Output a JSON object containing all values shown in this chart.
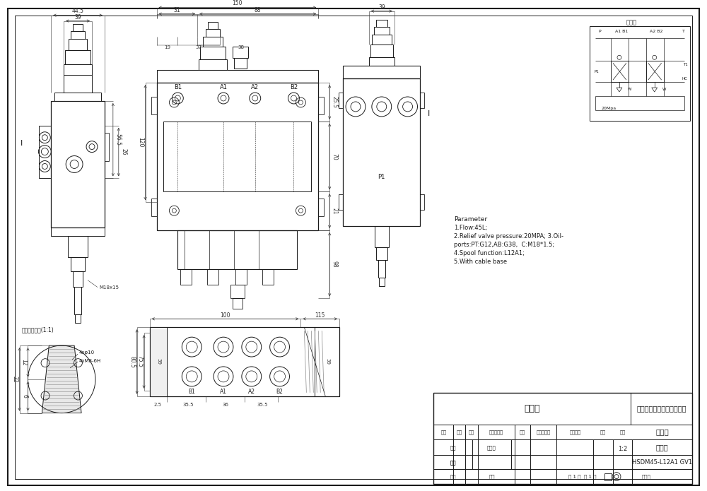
{
  "bg_color": "#ffffff",
  "lc": "#1a1a1a",
  "company": "山东奥救液压科技有限公司",
  "drawing_name": "外形图",
  "part_name": "直装阀",
  "drawing_number": "HSDM45-L12A1 GV1",
  "scale": "1:2",
  "schematic_title": "原理图",
  "detail_title": "局部放大计划(1:1)",
  "detail_label1": "4xφ10",
  "detail_label2": "4xM8-6H",
  "param_title": "Parameter",
  "param_lines": [
    "1.Flow:45L;",
    "2.Relief valve pressure:20MPA; 3.Oil-",
    "ports:PT:G12,AB:G38,  C:M18*1.5;",
    "4.Spool function:L12A1;",
    "5.With cable base"
  ],
  "tbl_mark": "标记",
  "tbl_count": "数量",
  "tbl_zone": "分区",
  "tbl_doc": "更改文件号",
  "tbl_sign": "签名",
  "tbl_date": "年、月、日",
  "tbl_designer": "设计",
  "tbl_std": "标准化",
  "tbl_audit": "核对",
  "tbl_approve": "审批",
  "tbl_stage": "阶段标记",
  "tbl_weight": "重量",
  "tbl_ratio": "比例",
  "tbl_process": "工艺",
  "tbl_approve2": "批准",
  "tbl_pages": "共 1 页  第 1 页",
  "tbl_version": "版本号"
}
